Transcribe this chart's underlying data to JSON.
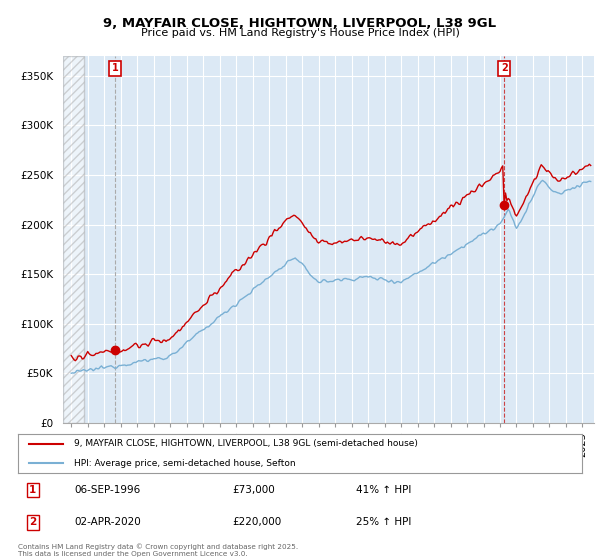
{
  "title1": "9, MAYFAIR CLOSE, HIGHTOWN, LIVERPOOL, L38 9GL",
  "title2": "Price paid vs. HM Land Registry's House Price Index (HPI)",
  "ylabel_ticks": [
    "£0",
    "£50K",
    "£100K",
    "£150K",
    "£200K",
    "£250K",
    "£300K",
    "£350K"
  ],
  "ytick_vals": [
    0,
    50000,
    100000,
    150000,
    200000,
    250000,
    300000,
    350000
  ],
  "ylim": [
    0,
    370000
  ],
  "xlim_start": 1993.5,
  "xlim_end": 2025.7,
  "red_color": "#cc0000",
  "blue_color": "#7ab0d4",
  "plot_bg_color": "#dce9f5",
  "marker1_date": 1996.67,
  "marker1_val": 73000,
  "marker2_date": 2020.25,
  "marker2_val": 220000,
  "legend_line1": "9, MAYFAIR CLOSE, HIGHTOWN, LIVERPOOL, L38 9GL (semi-detached house)",
  "legend_line2": "HPI: Average price, semi-detached house, Sefton",
  "annotation1_label": "1",
  "annotation1_date": "06-SEP-1996",
  "annotation1_price": "£73,000",
  "annotation1_hpi": "41% ↑ HPI",
  "annotation2_label": "2",
  "annotation2_date": "02-APR-2020",
  "annotation2_price": "£220,000",
  "annotation2_hpi": "25% ↑ HPI",
  "footnote": "Contains HM Land Registry data © Crown copyright and database right 2025.\nThis data is licensed under the Open Government Licence v3.0.",
  "background_color": "#ffffff",
  "hatch_end": 1994.75
}
